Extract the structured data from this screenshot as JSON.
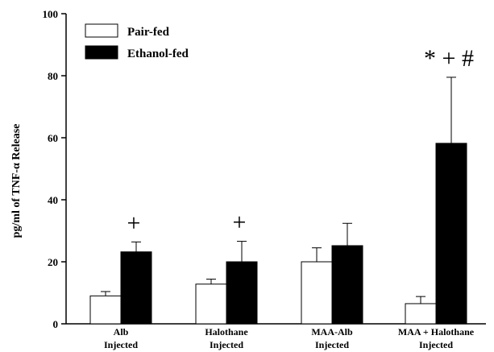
{
  "chart_data": {
    "type": "bar",
    "ylabel": "pg/ml of TNF-α Release",
    "ylim": [
      0,
      100
    ],
    "yticks": [
      0,
      20,
      40,
      60,
      80,
      100
    ],
    "grid": false,
    "legend_position": "top-left",
    "categories": [
      [
        "Alb",
        "Injected"
      ],
      [
        "Halothane",
        "Injected"
      ],
      [
        "MAA-Alb",
        "Injected"
      ],
      [
        "MAA + Halothane",
        "Injected"
      ]
    ],
    "series": [
      {
        "name": "Pair-fed",
        "color": "#ffffff",
        "values": [
          9,
          12.8,
          20,
          6.5
        ],
        "errors": [
          1.4,
          1.6,
          4.5,
          2.3
        ]
      },
      {
        "name": "Ethanol-fed",
        "color": "#000000",
        "values": [
          23.2,
          20,
          25.2,
          58.2
        ],
        "errors": [
          3.2,
          6.6,
          7.2,
          21.3
        ]
      }
    ],
    "annotations": [
      {
        "category": 0,
        "text": "+"
      },
      {
        "category": 1,
        "text": "+"
      },
      {
        "category": 3,
        "text": "* + #"
      }
    ]
  }
}
